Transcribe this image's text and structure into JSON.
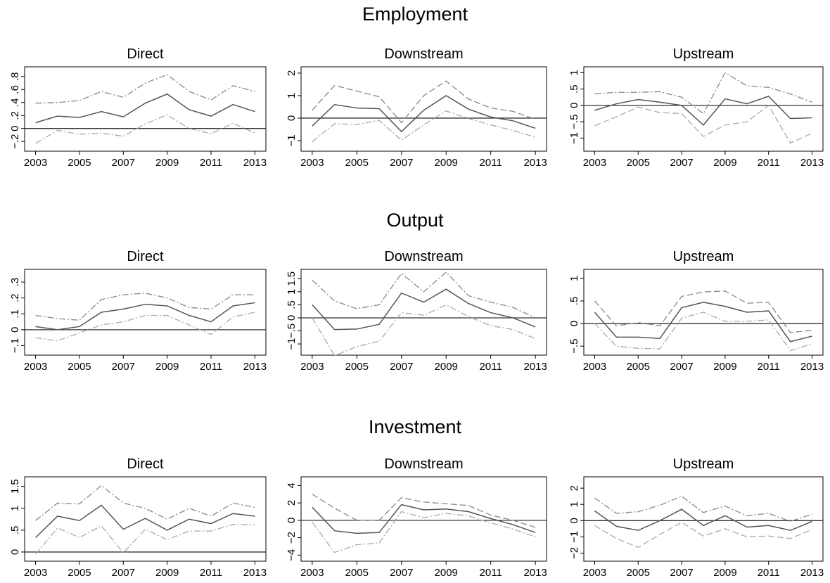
{
  "sections": [
    "Employment",
    "Output",
    "Investment"
  ],
  "chart_data": [
    {
      "type": "line",
      "title": "Direct",
      "x": [
        2003,
        2004,
        2005,
        2006,
        2007,
        2008,
        2009,
        2010,
        2011,
        2012,
        2013
      ],
      "xlim": [
        2002.5,
        2013.5
      ],
      "xticks": [
        2003,
        2005,
        2007,
        2009,
        2011,
        2013
      ],
      "ylim": [
        -0.35,
        0.95
      ],
      "yticks": [
        {
          "value": -0.2,
          "label": "−.2"
        },
        0,
        {
          "value": 0.2,
          "label": ".2"
        },
        {
          "value": 0.4,
          "label": ".4"
        },
        {
          "value": 0.6,
          "label": ".6"
        },
        {
          "value": 0.8,
          "label": ".8"
        }
      ],
      "reference_line": 0,
      "series": [
        {
          "color": "#555555",
          "dash": "solid",
          "values": [
            0.09,
            0.19,
            0.17,
            0.26,
            0.18,
            0.39,
            0.53,
            0.29,
            0.19,
            0.37,
            0.26
          ]
        },
        {
          "color": "#888888",
          "dash": "dashdot",
          "values": [
            0.39,
            0.4,
            0.43,
            0.57,
            0.48,
            0.7,
            0.83,
            0.57,
            0.44,
            0.66,
            0.57
          ]
        },
        {
          "color": "#aaaaaa",
          "dash": "dashdot",
          "values": [
            -0.23,
            -0.03,
            -0.09,
            -0.07,
            -0.12,
            0.07,
            0.21,
            0.0,
            -0.08,
            0.08,
            -0.07
          ]
        }
      ]
    },
    {
      "type": "line",
      "title": "Downstream",
      "x": [
        2003,
        2004,
        2005,
        2006,
        2007,
        2008,
        2009,
        2010,
        2011,
        2012,
        2013
      ],
      "xlim": [
        2002.5,
        2013.5
      ],
      "xticks": [
        2003,
        2005,
        2007,
        2009,
        2011,
        2013
      ],
      "ylim": [
        -1.47,
        2.28
      ],
      "yticks": [
        {
          "value": -1,
          "label": "−1"
        },
        0,
        1,
        2
      ],
      "reference_line": 0,
      "series": [
        {
          "color": "#555555",
          "dash": "solid",
          "values": [
            -0.35,
            0.6,
            0.45,
            0.42,
            -0.6,
            0.35,
            1.0,
            0.4,
            0.05,
            -0.12,
            -0.45
          ]
        },
        {
          "color": "#888888",
          "dash": "dashed",
          "values": [
            0.35,
            1.45,
            1.2,
            0.95,
            -0.2,
            1.0,
            1.65,
            0.85,
            0.45,
            0.3,
            -0.05
          ]
        },
        {
          "color": "#aaaaaa",
          "dash": "dashdot",
          "values": [
            -1.05,
            -0.25,
            -0.28,
            -0.1,
            -0.98,
            -0.3,
            0.32,
            -0.02,
            -0.3,
            -0.55,
            -0.85
          ]
        }
      ]
    },
    {
      "type": "line",
      "title": "Upstream",
      "x": [
        2003,
        2004,
        2005,
        2006,
        2007,
        2008,
        2009,
        2010,
        2011,
        2012,
        2013
      ],
      "xlim": [
        2002.5,
        2013.5
      ],
      "xticks": [
        2003,
        2005,
        2007,
        2009,
        2011,
        2013
      ],
      "ylim": [
        -1.4,
        1.18
      ],
      "yticks": [
        {
          "value": -1,
          "label": "−1"
        },
        {
          "value": -0.5,
          "label": "−.5"
        },
        0,
        {
          "value": 0.5,
          "label": ".5"
        },
        1
      ],
      "reference_line": 0,
      "series": [
        {
          "color": "#555555",
          "dash": "solid",
          "values": [
            -0.15,
            0.05,
            0.18,
            0.1,
            0.0,
            -0.6,
            0.2,
            0.05,
            0.28,
            -0.4,
            -0.38
          ]
        },
        {
          "color": "#888888",
          "dash": "dashdot",
          "values": [
            0.35,
            0.4,
            0.4,
            0.42,
            0.25,
            -0.25,
            1.0,
            0.6,
            0.55,
            0.35,
            0.1
          ]
        },
        {
          "color": "#aaaaaa",
          "dash": "dashed",
          "values": [
            -0.62,
            -0.35,
            -0.05,
            -0.22,
            -0.25,
            -0.95,
            -0.6,
            -0.5,
            0.0,
            -1.15,
            -0.85
          ]
        }
      ]
    },
    {
      "type": "line",
      "title": "Direct",
      "x": [
        2003,
        2004,
        2005,
        2006,
        2007,
        2008,
        2009,
        2010,
        2011,
        2012,
        2013
      ],
      "xlim": [
        2002.5,
        2013.5
      ],
      "xticks": [
        2003,
        2005,
        2007,
        2009,
        2011,
        2013
      ],
      "ylim": [
        -0.16,
        0.38
      ],
      "yticks": [
        {
          "value": -0.1,
          "label": "−.1"
        },
        0,
        {
          "value": 0.1,
          "label": ".1"
        },
        {
          "value": 0.2,
          "label": ".2"
        },
        {
          "value": 0.3,
          "label": ".3"
        }
      ],
      "reference_line": 0,
      "series": [
        {
          "color": "#555555",
          "dash": "solid",
          "values": [
            0.02,
            0.0,
            0.02,
            0.11,
            0.13,
            0.16,
            0.15,
            0.09,
            0.05,
            0.15,
            0.17
          ]
        },
        {
          "color": "#888888",
          "dash": "dashdot",
          "values": [
            0.09,
            0.07,
            0.06,
            0.19,
            0.22,
            0.23,
            0.2,
            0.14,
            0.13,
            0.22,
            0.22
          ]
        },
        {
          "color": "#aaaaaa",
          "dash": "dashdot",
          "values": [
            -0.05,
            -0.07,
            -0.02,
            0.03,
            0.05,
            0.09,
            0.09,
            0.03,
            -0.03,
            0.08,
            0.11
          ]
        }
      ]
    },
    {
      "type": "line",
      "title": "Downstream",
      "x": [
        2003,
        2004,
        2005,
        2006,
        2007,
        2008,
        2009,
        2010,
        2011,
        2012,
        2013
      ],
      "xlim": [
        2002.5,
        2013.5
      ],
      "xticks": [
        2003,
        2005,
        2007,
        2009,
        2011,
        2013
      ],
      "ylim": [
        -1.43,
        1.86
      ],
      "yticks": [
        {
          "value": -1,
          "label": "−1"
        },
        {
          "value": -0.5,
          "label": "−.5"
        },
        0,
        {
          "value": 0.5,
          "label": ".5"
        },
        1,
        1.5
      ],
      "reference_line": 0,
      "series": [
        {
          "color": "#555555",
          "dash": "solid",
          "values": [
            0.5,
            -0.45,
            -0.43,
            -0.25,
            0.95,
            0.6,
            1.1,
            0.55,
            0.2,
            0.0,
            -0.35
          ]
        },
        {
          "color": "#888888",
          "dash": "dashdot",
          "values": [
            1.45,
            0.65,
            0.35,
            0.5,
            1.7,
            1.0,
            1.75,
            0.85,
            0.6,
            0.4,
            0.0
          ]
        },
        {
          "color": "#aaaaaa",
          "dash": "dashdot",
          "values": [
            0.0,
            -1.45,
            -1.1,
            -0.9,
            0.2,
            0.1,
            0.5,
            0.05,
            -0.3,
            -0.45,
            -0.8
          ]
        }
      ]
    },
    {
      "type": "line",
      "title": "Upstream",
      "x": [
        2003,
        2004,
        2005,
        2006,
        2007,
        2008,
        2009,
        2010,
        2011,
        2012,
        2013
      ],
      "xlim": [
        2002.5,
        2013.5
      ],
      "xticks": [
        2003,
        2005,
        2007,
        2009,
        2011,
        2013
      ],
      "ylim": [
        -0.7,
        1.2
      ],
      "yticks": [
        {
          "value": -0.5,
          "label": "−.5"
        },
        0,
        {
          "value": 0.5,
          "label": ".5"
        },
        1
      ],
      "reference_line": 0,
      "series": [
        {
          "color": "#555555",
          "dash": "solid",
          "values": [
            0.25,
            -0.3,
            -0.3,
            -0.33,
            0.35,
            0.47,
            0.38,
            0.25,
            0.28,
            -0.4,
            -0.28
          ]
        },
        {
          "color": "#888888",
          "dash": "dashed",
          "values": [
            0.5,
            -0.05,
            0.02,
            -0.05,
            0.6,
            0.7,
            0.72,
            0.45,
            0.47,
            -0.2,
            -0.15
          ]
        },
        {
          "color": "#aaaaaa",
          "dash": "dashdot",
          "values": [
            0.0,
            -0.5,
            -0.55,
            -0.56,
            0.12,
            0.25,
            0.05,
            0.05,
            0.08,
            -0.6,
            -0.45
          ]
        }
      ]
    },
    {
      "type": "line",
      "title": "Direct",
      "x": [
        2003,
        2004,
        2005,
        2006,
        2007,
        2008,
        2009,
        2010,
        2011,
        2012,
        2013
      ],
      "xlim": [
        2002.5,
        2013.5
      ],
      "xticks": [
        2003,
        2005,
        2007,
        2009,
        2011,
        2013
      ],
      "ylim": [
        -0.21,
        1.72
      ],
      "yticks": [
        0,
        {
          "value": 0.5,
          "label": ".5"
        },
        1,
        1.5
      ],
      "reference_line": 0,
      "series": [
        {
          "color": "#555555",
          "dash": "solid",
          "values": [
            0.33,
            0.82,
            0.72,
            1.07,
            0.52,
            0.77,
            0.5,
            0.75,
            0.65,
            0.88,
            0.82
          ]
        },
        {
          "color": "#888888",
          "dash": "dashdot",
          "values": [
            0.72,
            1.12,
            1.1,
            1.52,
            1.12,
            1.0,
            0.75,
            1.0,
            0.82,
            1.12,
            1.02
          ]
        },
        {
          "color": "#aaaaaa",
          "dash": "dashdot",
          "values": [
            -0.05,
            0.55,
            0.33,
            0.6,
            -0.02,
            0.52,
            0.28,
            0.48,
            0.48,
            0.63,
            0.62
          ]
        }
      ]
    },
    {
      "type": "line",
      "title": "Downstream",
      "x": [
        2003,
        2004,
        2005,
        2006,
        2007,
        2008,
        2009,
        2010,
        2011,
        2012,
        2013
      ],
      "xlim": [
        2002.5,
        2013.5
      ],
      "xticks": [
        2003,
        2005,
        2007,
        2009,
        2011,
        2013
      ],
      "ylim": [
        -4.7,
        5.0
      ],
      "yticks": [
        {
          "value": -4,
          "label": "−4"
        },
        {
          "value": -2,
          "label": "−2"
        },
        0,
        2,
        4
      ],
      "reference_line": 0,
      "series": [
        {
          "color": "#555555",
          "dash": "solid",
          "values": [
            1.5,
            -1.2,
            -1.5,
            -1.4,
            1.8,
            1.2,
            1.3,
            1.0,
            0.2,
            -0.5,
            -1.4
          ]
        },
        {
          "color": "#888888",
          "dash": "dashed",
          "values": [
            3.0,
            1.4,
            0.0,
            0.0,
            2.6,
            2.1,
            1.9,
            1.7,
            0.6,
            0.0,
            -0.8
          ]
        },
        {
          "color": "#aaaaaa",
          "dash": "dashdot",
          "values": [
            -0.2,
            -3.7,
            -2.8,
            -2.6,
            1.0,
            0.3,
            0.8,
            0.5,
            -0.3,
            -1.0,
            -1.9
          ]
        }
      ]
    },
    {
      "type": "line",
      "title": "Upstream",
      "x": [
        2003,
        2004,
        2005,
        2006,
        2007,
        2008,
        2009,
        2010,
        2011,
        2012,
        2013
      ],
      "xlim": [
        2002.5,
        2013.5
      ],
      "xticks": [
        2003,
        2005,
        2007,
        2009,
        2011,
        2013
      ],
      "ylim": [
        -2.5,
        2.7
      ],
      "yticks": [
        {
          "value": -2,
          "label": "−2"
        },
        {
          "value": -1,
          "label": "−1"
        },
        0,
        1,
        2
      ],
      "reference_line": 0,
      "series": [
        {
          "color": "#555555",
          "dash": "solid",
          "values": [
            0.6,
            -0.35,
            -0.6,
            0.0,
            0.7,
            -0.3,
            0.3,
            -0.4,
            -0.3,
            -0.6,
            -0.05
          ]
        },
        {
          "color": "#888888",
          "dash": "dashdot",
          "values": [
            1.4,
            0.45,
            0.55,
            0.95,
            1.5,
            0.5,
            0.9,
            0.3,
            0.45,
            -0.05,
            0.4
          ]
        },
        {
          "color": "#aaaaaa",
          "dash": "dashed",
          "values": [
            -0.3,
            -1.1,
            -1.65,
            -0.85,
            -0.1,
            -0.95,
            -0.5,
            -1.0,
            -0.95,
            -1.1,
            -0.55
          ]
        }
      ]
    }
  ]
}
